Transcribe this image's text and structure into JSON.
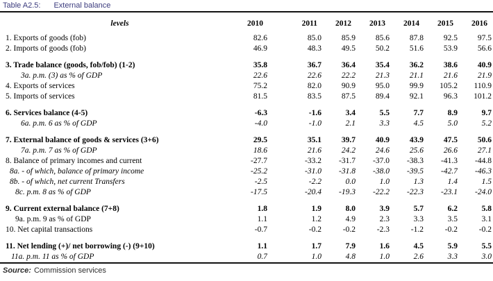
{
  "title": {
    "label": "Table A2.5:",
    "text": "External balance",
    "color": "#3b3b7d"
  },
  "table": {
    "levels_label": "levels",
    "years": [
      "2010",
      "2011",
      "2012",
      "2013",
      "2014",
      "2015",
      "2016"
    ],
    "rows": [
      {
        "label": "1. Exports of goods (fob)",
        "style": "regular",
        "indent": 8,
        "group_start": false,
        "values": [
          "82.6",
          "85.0",
          "85.9",
          "85.6",
          "87.8",
          "92.5",
          "97.5"
        ]
      },
      {
        "label": "2. Imports of goods (fob)",
        "style": "regular",
        "indent": 8,
        "group_start": false,
        "values": [
          "46.9",
          "48.3",
          "49.5",
          "50.2",
          "51.6",
          "53.9",
          "56.6"
        ]
      },
      {
        "label": "3. Trade balance (goods, fob/fob) (1-2)",
        "style": "bold",
        "indent": 8,
        "group_start": true,
        "values": [
          "35.8",
          "36.7",
          "36.4",
          "35.4",
          "36.2",
          "38.6",
          "40.9"
        ]
      },
      {
        "label": "3a. p.m. (3) as % of GDP",
        "style": "italic",
        "indent": 30,
        "group_start": false,
        "values": [
          "22.6",
          "22.6",
          "22.2",
          "21.3",
          "21.1",
          "21.6",
          "21.9"
        ]
      },
      {
        "label": "4. Exports of services",
        "style": "regular",
        "indent": 8,
        "group_start": false,
        "values": [
          "75.2",
          "82.0",
          "90.9",
          "95.0",
          "99.9",
          "105.2",
          "110.9"
        ]
      },
      {
        "label": "5. Imports of services",
        "style": "regular",
        "indent": 8,
        "group_start": false,
        "values": [
          "81.5",
          "83.5",
          "87.5",
          "89.4",
          "92.1",
          "96.3",
          "101.2"
        ]
      },
      {
        "label": "6. Services balance (4-5)",
        "style": "bold",
        "indent": 8,
        "group_start": true,
        "values": [
          "-6.3",
          "-1.6",
          "3.4",
          "5.5",
          "7.7",
          "8.9",
          "9.7"
        ]
      },
      {
        "label": "6a. p.m. 6 as % of GDP",
        "style": "italic",
        "indent": 30,
        "group_start": false,
        "values": [
          "-4.0",
          "-1.0",
          "2.1",
          "3.3",
          "4.5",
          "5.0",
          "5.2"
        ]
      },
      {
        "label": "7. External balance of goods & services (3+6)",
        "style": "bold",
        "indent": 8,
        "group_start": true,
        "values": [
          "29.5",
          "35.1",
          "39.7",
          "40.9",
          "43.9",
          "47.5",
          "50.6"
        ]
      },
      {
        "label": "7a. p.m. 7 as % of GDP",
        "style": "italic",
        "indent": 30,
        "group_start": false,
        "values": [
          "18.6",
          "21.6",
          "24.2",
          "24.6",
          "25.6",
          "26.6",
          "27.1"
        ]
      },
      {
        "label": "8. Balance of primary incomes and current",
        "style": "regular",
        "indent": 8,
        "group_start": false,
        "values": [
          "-27.7",
          "-33.2",
          "-31.7",
          "-37.0",
          "-38.3",
          "-41.3",
          "-44.8"
        ]
      },
      {
        "label": "8a. - of which, balance of primary income",
        "style": "italic",
        "indent": 14,
        "group_start": false,
        "values": [
          "-25.2",
          "-31.0",
          "-31.8",
          "-38.0",
          "-39.5",
          "-42.7",
          "-46.3"
        ]
      },
      {
        "label": "8b. - of which, net current Transfers",
        "style": "italic",
        "indent": 14,
        "group_start": false,
        "values": [
          "-2.5",
          "-2.2",
          "0.0",
          "1.0",
          "1.3",
          "1.4",
          "1.5"
        ]
      },
      {
        "label": "8c. p.m. 8 as % of GDP",
        "style": "italic",
        "indent": 22,
        "group_start": false,
        "values": [
          "-17.5",
          "-20.4",
          "-19.3",
          "-22.2",
          "-22.3",
          "-23.1",
          "-24.0"
        ]
      },
      {
        "label": "9. Current external balance (7+8)",
        "style": "bold",
        "indent": 8,
        "group_start": true,
        "values": [
          "1.8",
          "1.9",
          "8.0",
          "3.9",
          "5.7",
          "6.2",
          "5.8"
        ]
      },
      {
        "label": "9a. p.m. 9 as % of GDP",
        "style": "regular",
        "indent": 22,
        "group_start": false,
        "values": [
          "1.1",
          "1.2",
          "4.9",
          "2.3",
          "3.3",
          "3.5",
          "3.1"
        ]
      },
      {
        "label": "10. Net capital transactions",
        "style": "regular",
        "indent": 8,
        "group_start": false,
        "values": [
          "-0.7",
          "-0.2",
          "-0.2",
          "-2.3",
          "-1.2",
          "-0.2",
          "-0.2"
        ]
      },
      {
        "label": "11. Net lending (+)/ net borrowing (-) (9+10)",
        "style": "bold",
        "indent": 8,
        "group_start": true,
        "values": [
          "1.1",
          "1.7",
          "7.9",
          "1.6",
          "4.5",
          "5.9",
          "5.5"
        ]
      },
      {
        "label": "11a. p.m. 11 as % of GDP",
        "style": "italic",
        "indent": 16,
        "group_start": false,
        "values": [
          "0.7",
          "1.0",
          "4.8",
          "1.0",
          "2.6",
          "3.3",
          "3.0"
        ]
      }
    ]
  },
  "source": {
    "label": "Source:",
    "text": "Commission services"
  }
}
